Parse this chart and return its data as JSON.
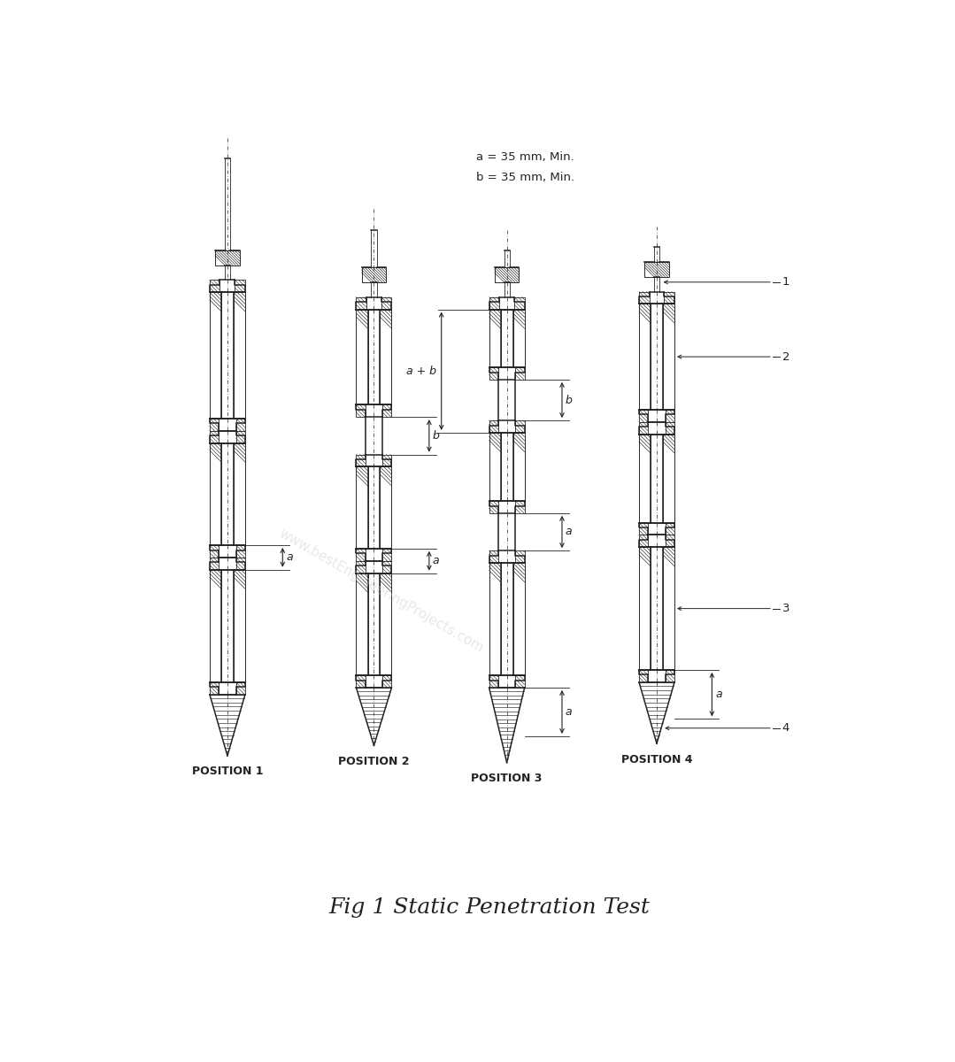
{
  "title": "Fig 1 Static Penetration Test",
  "background_color": "#ffffff",
  "line_color": "#222222",
  "note_line1": "a = 35 mm, Min.",
  "note_line2": "b = 35 mm, Min.",
  "positions": [
    "POSITION 1",
    "POSITION 2",
    "POSITION 3",
    "POSITION 4"
  ],
  "watermark": "www.bestEngineeringProjects.com",
  "watermark_color": "#cccccc",
  "p1x": 1.55,
  "p2x": 3.7,
  "p3x": 5.65,
  "p4x": 7.85,
  "figw": 10.79,
  "figh": 12.0
}
